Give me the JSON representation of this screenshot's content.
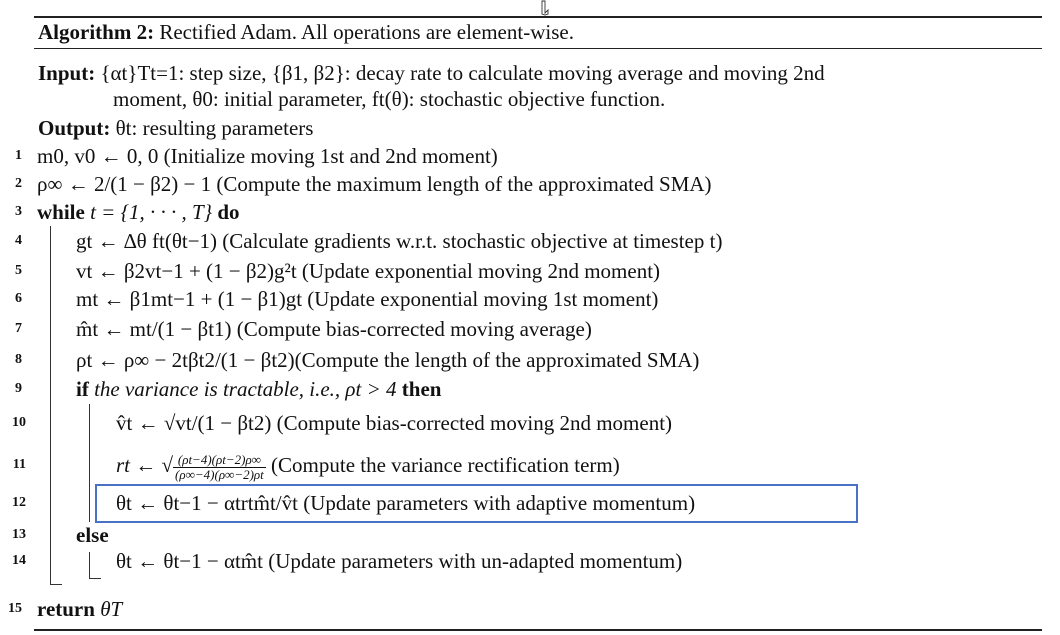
{
  "algorithm": {
    "label": "Algorithm 2:",
    "title": "Rectified Adam. All operations are element-wise.",
    "input_label": "Input:",
    "input_text_1": "{αt}Tt=1: step size, {β1, β2}: decay rate to calculate moving average and moving 2nd",
    "input_text_2": "moment, θ0: initial parameter, ft(θ): stochastic objective function.",
    "output_label": "Output:",
    "output_text": "θt: resulting parameters"
  },
  "lines": [
    {
      "num": "1",
      "code": "m0, v0 ← 0, 0 (Initialize moving 1st and 2nd moment)"
    },
    {
      "num": "2",
      "code": "ρ∞ ← 2/(1 − β2) − 1 (Compute the maximum length of the approximated SMA)"
    },
    {
      "num": "3",
      "kw": "while",
      "code": "t = {1, · · · , T}",
      "kw2": "do"
    },
    {
      "num": "4",
      "code": "gt ← ∆θ ft(θt−1) (Calculate gradients w.r.t. stochastic objective at timestep t)"
    },
    {
      "num": "5",
      "code": "vt ← β2vt−1 + (1 − β2)g²t (Update exponential moving 2nd moment)"
    },
    {
      "num": "6",
      "code": "mt ← β1mt−1 + (1 − β1)gt (Update exponential moving 1st moment)"
    },
    {
      "num": "7",
      "code": "m̂t ← mt/(1 − βt1) (Compute bias-corrected moving average)"
    },
    {
      "num": "8",
      "code": "ρt ← ρ∞ − 2tβt2/(1 − βt2)(Compute the length of the approximated SMA)"
    },
    {
      "num": "9",
      "kw": "if",
      "cond": "the variance is tractable, i.e., ρt > 4",
      "kw2": "then"
    },
    {
      "num": "10",
      "code": "v̂t ← √vt/(1 − βt2) (Compute bias-corrected moving 2nd moment)"
    },
    {
      "num": "11",
      "code_pre": "rt ←",
      "frac_num": "(ρt−4)(ρt−2)ρ∞",
      "frac_den": "(ρ∞−4)(ρ∞−2)ρt",
      "code_post": "(Compute the variance rectification term)"
    },
    {
      "num": "12",
      "code": "θt ← θt−1 − αtrtm̂t/v̂t (Update parameters with adaptive momentum)"
    },
    {
      "num": "13",
      "kw": "else"
    },
    {
      "num": "14",
      "code": "θt ← θt−1 − αtm̂t (Update parameters with un-adapted momentum)"
    },
    {
      "num": "15",
      "kw": "return",
      "code": "θT"
    }
  ]
}
